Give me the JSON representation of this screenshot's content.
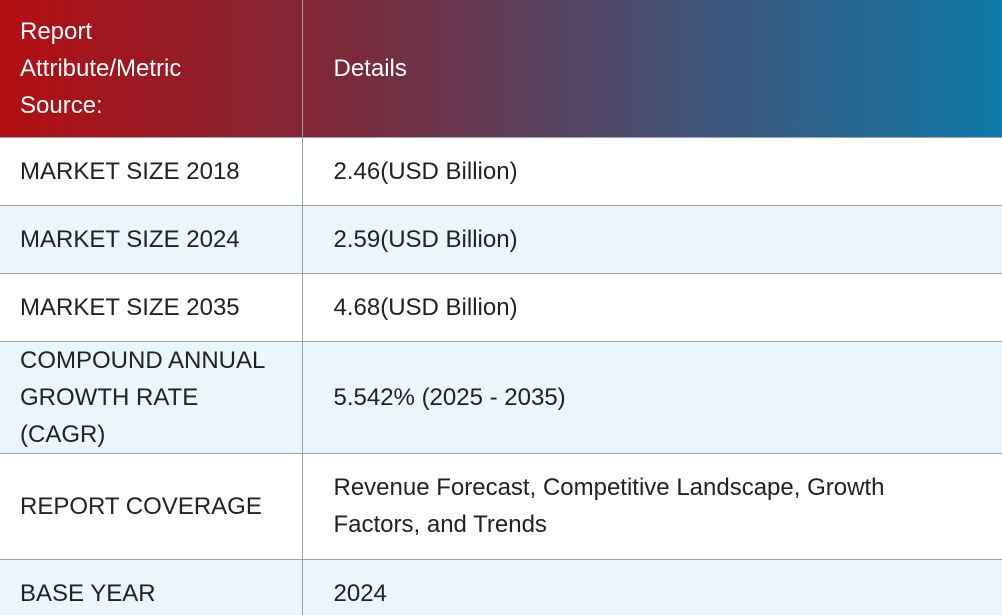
{
  "table": {
    "header": {
      "col1_line1": "Report",
      "col1_line2": "Attribute/Metric",
      "col1_line3": "Source:",
      "col2": "Details"
    },
    "rows": [
      {
        "label": "MARKET SIZE 2018",
        "value": "2.46(USD Billion)"
      },
      {
        "label": "MARKET SIZE 2024",
        "value": "2.59(USD Billion)"
      },
      {
        "label": "MARKET SIZE 2035",
        "value": "4.68(USD Billion)"
      },
      {
        "label_line1": "COMPOUND ANNUAL",
        "label_line2": "GROWTH RATE (CAGR)",
        "value": "5.542% (2025 - 2035)"
      },
      {
        "label": "REPORT COVERAGE",
        "value_line1": "Revenue Forecast, Competitive Landscape, Growth",
        "value_line2": "Factors, and Trends"
      },
      {
        "label": "BASE YEAR",
        "value": "2024"
      }
    ]
  },
  "colors": {
    "header_gradient_start": "#b30e12",
    "header_gradient_end": "#0f7aa8",
    "alt_row_bg": "#eaf6fb",
    "text": "#222222",
    "header_text": "#ffffff"
  }
}
